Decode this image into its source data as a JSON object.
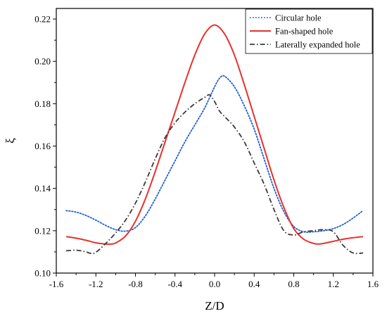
{
  "chart_data": {
    "type": "line",
    "xlabel": "Z/D",
    "ylabel": "ξ",
    "xlim": [
      -1.6,
      1.6
    ],
    "ylim": [
      0.1,
      0.225
    ],
    "xticks": [
      -1.6,
      -1.2,
      -0.8,
      -0.4,
      0.0,
      0.4,
      0.8,
      1.2,
      1.6
    ],
    "xtick_labels": [
      "-1.6",
      "-1.2",
      "-0.8",
      "-0.4",
      "0.0",
      "0.4",
      "0.8",
      "1.2",
      "1.6"
    ],
    "yticks": [
      0.1,
      0.12,
      0.14,
      0.16,
      0.18,
      0.2,
      0.22
    ],
    "ytick_labels": [
      "0.10",
      "0.12",
      "0.14",
      "0.16",
      "0.18",
      "0.20",
      "0.22"
    ],
    "grid": false,
    "legend_position": "top-right",
    "series": [
      {
        "name": "Circular hole",
        "color": "#1f5fd6",
        "style": "dotted",
        "x": [
          -1.5,
          -1.4,
          -1.3,
          -1.2,
          -1.1,
          -1.0,
          -0.9,
          -0.8,
          -0.7,
          -0.6,
          -0.5,
          -0.4,
          -0.3,
          -0.2,
          -0.1,
          0.0,
          0.05,
          0.1,
          0.2,
          0.3,
          0.4,
          0.5,
          0.6,
          0.7,
          0.8,
          0.9,
          1.0,
          1.1,
          1.2,
          1.3,
          1.4,
          1.5
        ],
        "y": [
          0.1295,
          0.1288,
          0.1272,
          0.125,
          0.1225,
          0.1205,
          0.1198,
          0.1215,
          0.127,
          0.135,
          0.144,
          0.153,
          0.162,
          0.17,
          0.178,
          0.188,
          0.192,
          0.193,
          0.188,
          0.179,
          0.168,
          0.154,
          0.14,
          0.129,
          0.122,
          0.1195,
          0.1195,
          0.12,
          0.121,
          0.123,
          0.126,
          0.1295
        ]
      },
      {
        "name": "Fan-shaped hole",
        "color": "#e8312a",
        "style": "solid",
        "x": [
          -1.5,
          -1.4,
          -1.3,
          -1.2,
          -1.1,
          -1.05,
          -1.0,
          -0.9,
          -0.8,
          -0.7,
          -0.6,
          -0.5,
          -0.4,
          -0.3,
          -0.2,
          -0.1,
          0.0,
          0.1,
          0.2,
          0.3,
          0.4,
          0.5,
          0.6,
          0.7,
          0.8,
          0.9,
          1.0,
          1.05,
          1.1,
          1.2,
          1.3,
          1.4,
          1.5
        ],
        "y": [
          0.1172,
          0.1165,
          0.1155,
          0.1143,
          0.1137,
          0.1137,
          0.1142,
          0.1175,
          0.1245,
          0.135,
          0.148,
          0.162,
          0.176,
          0.19,
          0.203,
          0.213,
          0.2172,
          0.213,
          0.203,
          0.189,
          0.174,
          0.159,
          0.144,
          0.131,
          0.121,
          0.116,
          0.114,
          0.1137,
          0.114,
          0.115,
          0.116,
          0.1167,
          0.1172
        ]
      },
      {
        "name": "Laterally expanded hole",
        "color": "#3a3a3a",
        "style": "dashdot",
        "x": [
          -1.5,
          -1.4,
          -1.3,
          -1.25,
          -1.2,
          -1.1,
          -1.0,
          -0.9,
          -0.8,
          -0.7,
          -0.6,
          -0.5,
          -0.4,
          -0.3,
          -0.2,
          -0.1,
          -0.05,
          0.0,
          0.05,
          0.1,
          0.2,
          0.3,
          0.4,
          0.5,
          0.6,
          0.7,
          0.8,
          0.9,
          1.0,
          1.1,
          1.2,
          1.3,
          1.4,
          1.5
        ],
        "y": [
          0.1105,
          0.1108,
          0.11,
          0.1093,
          0.1098,
          0.114,
          0.119,
          0.125,
          0.133,
          0.143,
          0.154,
          0.164,
          0.171,
          0.176,
          0.18,
          0.183,
          0.1842,
          0.181,
          0.1765,
          0.174,
          0.169,
          0.162,
          0.152,
          0.142,
          0.13,
          0.12,
          0.118,
          0.1195,
          0.12,
          0.1205,
          0.1195,
          0.113,
          0.1095,
          0.1095
        ]
      }
    ]
  }
}
